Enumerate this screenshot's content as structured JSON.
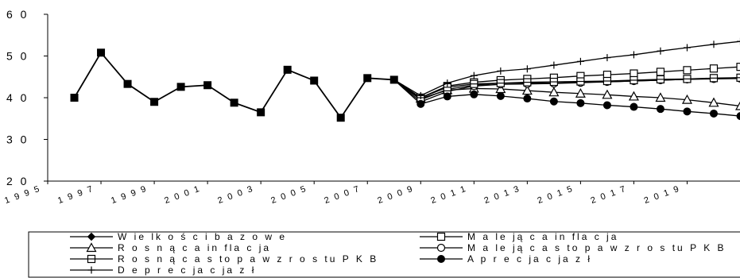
{
  "chart_data": {
    "type": "line",
    "title": "",
    "xlabel": "",
    "ylabel": "",
    "ylim": [
      20,
      60
    ],
    "xlim": [
      1995,
      2020
    ],
    "y_ticks": [
      20,
      30,
      40,
      50,
      60
    ],
    "y_tick_labels": [
      "2 0",
      "3 0",
      "4 0",
      "5 0",
      "6 0"
    ],
    "x_ticks": [
      1995,
      1997,
      1999,
      2001,
      2003,
      2005,
      2007,
      2009,
      2011,
      2013,
      2015,
      2017,
      2019
    ],
    "x_tick_labels": [
      "1 9 9 5",
      "1 9 9 7",
      "1 9 9 9",
      "2 0 0 1",
      "2 0 0 3",
      "2 0 0 5",
      "2 0 0 7",
      "2 0 0 9",
      "2 0 1 1",
      "2 0 1 3",
      "2 0 1 5",
      "2 0 1 7",
      "2 0 1 9"
    ],
    "grid": false,
    "legend_position": "bottom",
    "history": {
      "x": [
        1996,
        1997,
        1998,
        1999,
        2000,
        2001,
        2002,
        2003,
        2004,
        2005,
        2006,
        2007,
        2008
      ],
      "y": [
        40.0,
        50.8,
        43.3,
        39.0,
        42.6,
        43.0,
        38.8,
        36.5,
        46.7,
        44.1,
        35.2,
        44.7,
        44.3
      ]
    },
    "forecast_x": [
      2009,
      2010,
      2011,
      2012,
      2013,
      2014,
      2015,
      2016,
      2017,
      2018,
      2019,
      2020,
      2021
    ],
    "series": [
      {
        "name": "W ie lk o ś c i b a z o w e",
        "marker": "diamond-filled",
        "values": [
          39.5,
          42.0,
          43.0,
          43.5,
          43.5,
          43.5,
          43.7,
          43.8,
          44.0,
          44.2,
          44.4,
          44.6,
          44.8
        ]
      },
      {
        "name": "M a le ją c a in fla c ja",
        "marker": "square-open",
        "values": [
          40.0,
          42.8,
          43.7,
          44.2,
          44.5,
          44.8,
          45.2,
          45.5,
          45.8,
          46.2,
          46.6,
          47.0,
          47.4
        ]
      },
      {
        "name": "R o s n ą c a in fla c ja",
        "marker": "triangle-open",
        "values": [
          39.8,
          41.8,
          42.2,
          42.1,
          41.7,
          41.3,
          41.0,
          40.7,
          40.3,
          40.0,
          39.5,
          38.8,
          38.0
        ]
      },
      {
        "name": "M a le ją c a s to p a w z r o s tu P K B",
        "marker": "circle-open",
        "values": [
          39.0,
          41.5,
          42.8,
          43.2,
          43.3,
          43.4,
          43.6,
          43.8,
          44.0,
          44.2,
          44.4,
          44.5,
          44.6
        ]
      },
      {
        "name": "R o s n ą c a s to p a w z r o s tu P K B",
        "marker": "square-lined",
        "values": [
          40.0,
          42.5,
          43.3,
          43.5,
          43.7,
          43.8,
          43.9,
          44.0,
          44.2,
          44.4,
          44.5,
          44.7,
          44.8
        ]
      },
      {
        "name": "A p r e c ja c ja z ł",
        "marker": "circle-filled",
        "values": [
          38.5,
          40.3,
          40.8,
          40.4,
          39.8,
          39.1,
          38.7,
          38.2,
          37.8,
          37.3,
          36.7,
          36.2,
          35.6
        ]
      },
      {
        "name": "D e p r e c ja c ja z ł",
        "marker": "plus",
        "values": [
          40.5,
          43.5,
          45.3,
          46.4,
          46.9,
          47.8,
          48.7,
          49.6,
          50.3,
          51.2,
          52.0,
          52.8,
          53.5
        ]
      }
    ]
  }
}
